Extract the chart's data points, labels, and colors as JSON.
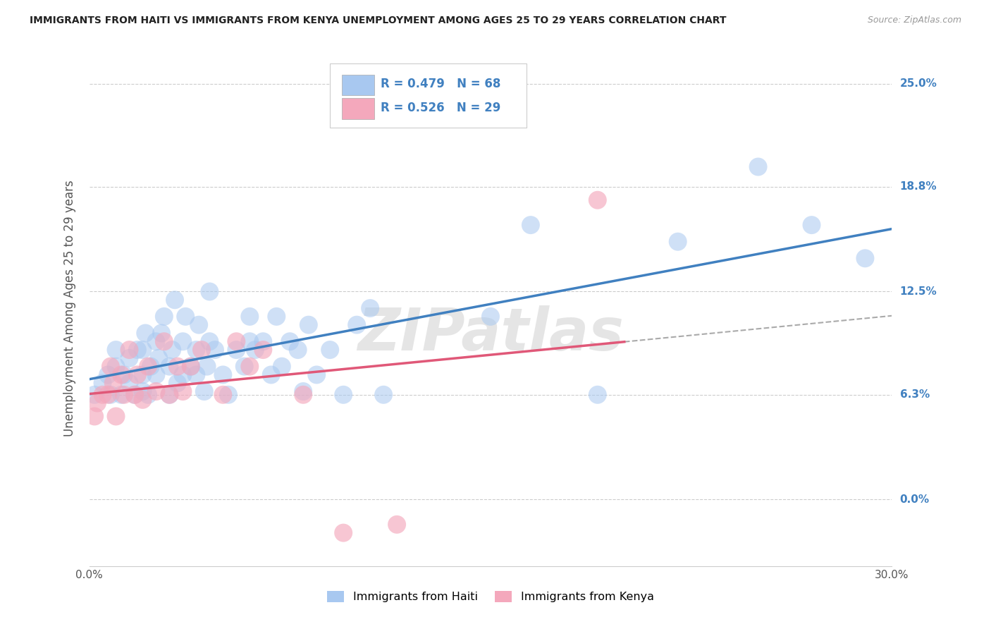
{
  "title": "IMMIGRANTS FROM HAITI VS IMMIGRANTS FROM KENYA UNEMPLOYMENT AMONG AGES 25 TO 29 YEARS CORRELATION CHART",
  "source": "Source: ZipAtlas.com",
  "ylabel": "Unemployment Among Ages 25 to 29 years",
  "xlim": [
    0.0,
    0.3
  ],
  "ylim": [
    -0.04,
    0.27
  ],
  "yticks": [
    0.0,
    0.063,
    0.125,
    0.188,
    0.25
  ],
  "ytick_labels": [
    "0.0%",
    "6.3%",
    "12.5%",
    "18.8%",
    "25.0%"
  ],
  "xticks": [
    0.0,
    0.05,
    0.1,
    0.15,
    0.2,
    0.25,
    0.3
  ],
  "xtick_labels": [
    "0.0%",
    "",
    "",
    "",
    "",
    "",
    "30.0%"
  ],
  "haiti_R": 0.479,
  "haiti_N": 68,
  "kenya_R": 0.526,
  "kenya_N": 29,
  "haiti_color": "#A8C8F0",
  "kenya_color": "#F4A8BC",
  "haiti_line_color": "#4080C0",
  "kenya_line_color": "#E05878",
  "watermark": "ZIPatlas",
  "background_color": "#ffffff",
  "grid_color": "#cccccc",
  "haiti_x": [
    0.002,
    0.005,
    0.007,
    0.008,
    0.01,
    0.01,
    0.012,
    0.013,
    0.015,
    0.015,
    0.017,
    0.018,
    0.02,
    0.02,
    0.02,
    0.021,
    0.022,
    0.023,
    0.025,
    0.025,
    0.026,
    0.027,
    0.028,
    0.03,
    0.03,
    0.031,
    0.032,
    0.033,
    0.035,
    0.035,
    0.036,
    0.038,
    0.04,
    0.04,
    0.041,
    0.043,
    0.044,
    0.045,
    0.045,
    0.047,
    0.05,
    0.052,
    0.055,
    0.058,
    0.06,
    0.06,
    0.062,
    0.065,
    0.068,
    0.07,
    0.072,
    0.075,
    0.078,
    0.08,
    0.082,
    0.085,
    0.09,
    0.095,
    0.1,
    0.105,
    0.11,
    0.15,
    0.165,
    0.19,
    0.22,
    0.25,
    0.27,
    0.29
  ],
  "haiti_y": [
    0.063,
    0.07,
    0.075,
    0.063,
    0.08,
    0.09,
    0.063,
    0.075,
    0.07,
    0.085,
    0.063,
    0.09,
    0.065,
    0.075,
    0.09,
    0.1,
    0.063,
    0.08,
    0.075,
    0.095,
    0.085,
    0.1,
    0.11,
    0.063,
    0.08,
    0.09,
    0.12,
    0.07,
    0.075,
    0.095,
    0.11,
    0.08,
    0.075,
    0.09,
    0.105,
    0.065,
    0.08,
    0.095,
    0.125,
    0.09,
    0.075,
    0.063,
    0.09,
    0.08,
    0.095,
    0.11,
    0.09,
    0.095,
    0.075,
    0.11,
    0.08,
    0.095,
    0.09,
    0.065,
    0.105,
    0.075,
    0.09,
    0.063,
    0.105,
    0.115,
    0.063,
    0.11,
    0.165,
    0.063,
    0.155,
    0.2,
    0.165,
    0.145
  ],
  "kenya_x": [
    0.002,
    0.003,
    0.005,
    0.007,
    0.008,
    0.009,
    0.01,
    0.012,
    0.013,
    0.015,
    0.017,
    0.018,
    0.02,
    0.022,
    0.025,
    0.028,
    0.03,
    0.033,
    0.035,
    0.038,
    0.042,
    0.05,
    0.055,
    0.06,
    0.065,
    0.08,
    0.095,
    0.115,
    0.19
  ],
  "kenya_y": [
    0.05,
    0.058,
    0.063,
    0.063,
    0.08,
    0.07,
    0.05,
    0.075,
    0.063,
    0.09,
    0.063,
    0.075,
    0.06,
    0.08,
    0.065,
    0.095,
    0.063,
    0.08,
    0.065,
    0.08,
    0.09,
    0.063,
    0.095,
    0.08,
    0.09,
    0.063,
    -0.02,
    -0.015,
    0.18
  ]
}
